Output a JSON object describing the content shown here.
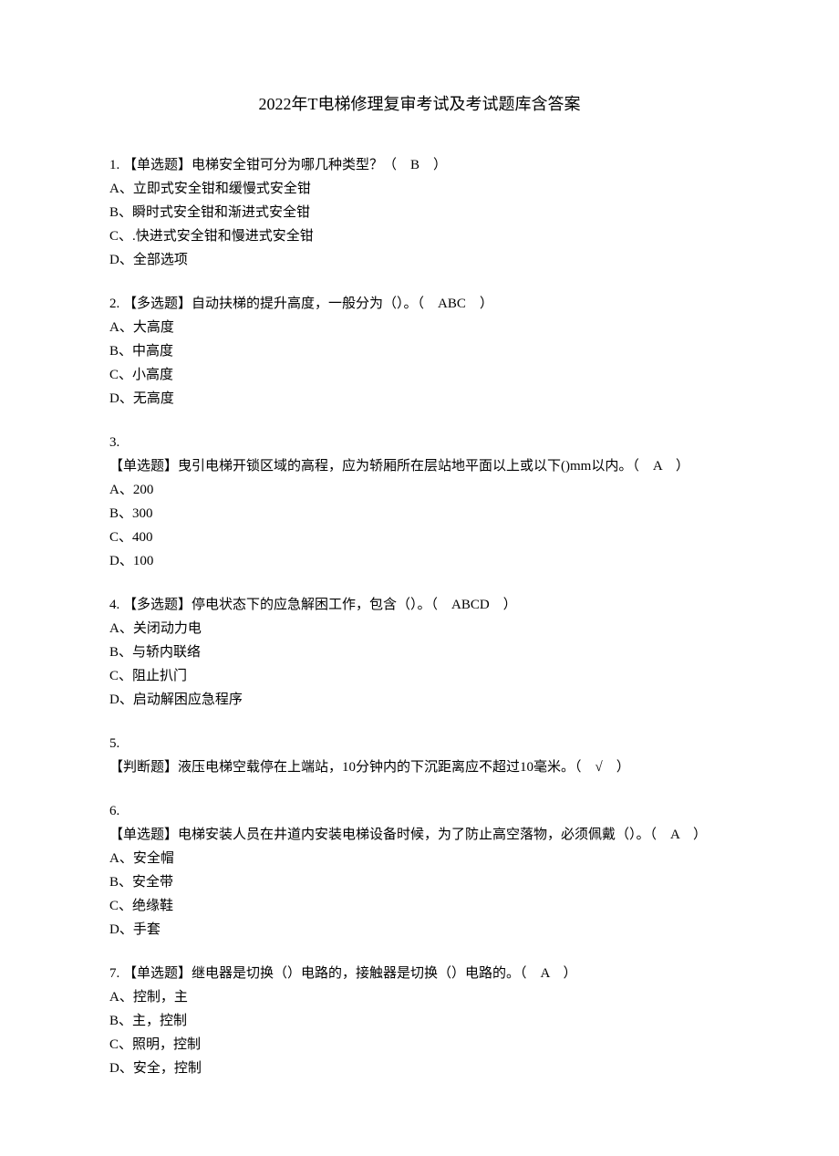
{
  "title": "2022年T电梯修理复审考试及考试题库含答案",
  "questions": [
    {
      "num": "1. ",
      "type": "【单选题】",
      "text": "电梯安全钳可分为哪几种类型？（　B　）",
      "options": [
        "A、立即式安全钳和缓慢式安全钳",
        "B、瞬时式安全钳和渐进式安全钳",
        "C、.快进式安全钳和慢进式安全钳",
        "D、全部选项"
      ]
    },
    {
      "num": "2. ",
      "type": "【多选题】",
      "text": "自动扶梯的提升高度，一般分为（）。（　ABC　）",
      "options": [
        "A、大高度",
        "B、中高度",
        "C、小高度",
        "D、无高度"
      ]
    },
    {
      "num": "3.",
      "type": "【单选题】",
      "text": "曳引电梯开锁区域的高程，应为轿厢所在层站地平面以上或以下()mm以内。（　A　）",
      "wrap": true,
      "options": [
        "A、200",
        "B、300",
        "C、400",
        "D、100"
      ]
    },
    {
      "num": "4. ",
      "type": "【多选题】",
      "text": "停电状态下的应急解困工作，包含（）。（　ABCD　）",
      "options": [
        "A、关闭动力电",
        "B、与轿内联络",
        "C、阻止扒门",
        "D、启动解困应急程序"
      ]
    },
    {
      "num": "5.",
      "type": "【判断题】",
      "text": "液压电梯空载停在上端站，10分钟内的下沉距离应不超过10毫米。（　√　）",
      "wrap": true,
      "options": []
    },
    {
      "num": "6.",
      "type": "【单选题】",
      "text": "电梯安装人员在井道内安装电梯设备时候，为了防止高空落物，必须佩戴（）。（　A　）",
      "wrap": true,
      "options": [
        "A、安全帽",
        "B、安全带",
        "C、绝缘鞋",
        "D、手套"
      ]
    },
    {
      "num": "7. ",
      "type": "【单选题】",
      "text": "继电器是切换（）电路的，接触器是切换（）电路的。（　A　）",
      "options": [
        "A、控制，主",
        "B、主，控制",
        "C、照明，控制",
        "D、安全，控制"
      ]
    }
  ]
}
